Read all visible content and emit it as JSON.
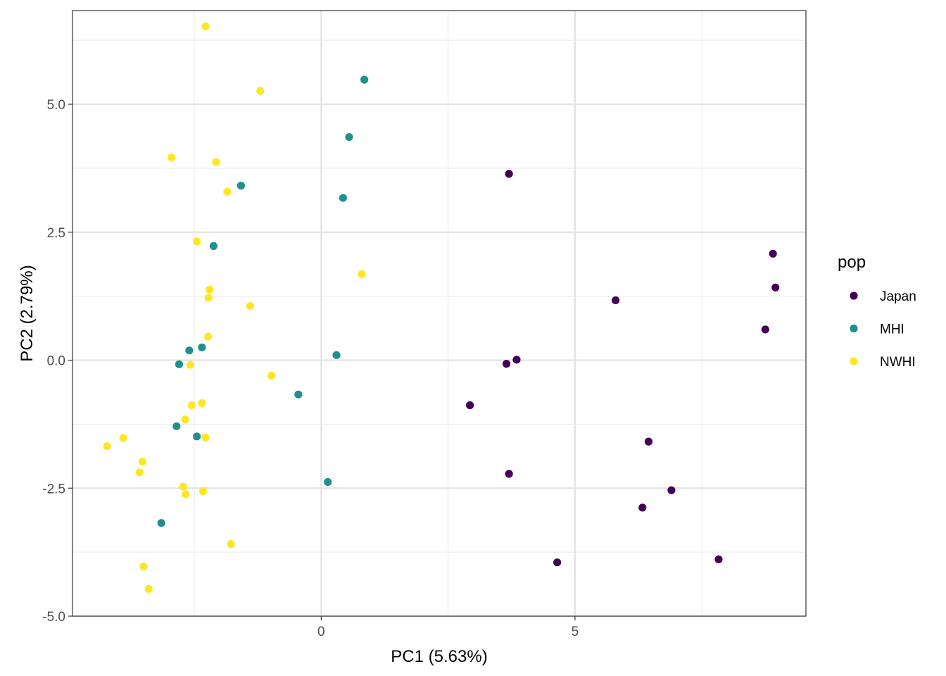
{
  "chart_data": {
    "type": "scatter",
    "title": "",
    "xlabel": "PC1 (5.63%)",
    "ylabel": "PC2 (2.79%)",
    "xlim": [
      -4.9,
      9.55
    ],
    "ylim": [
      -5.0,
      6.83
    ],
    "x_ticks": [
      {
        "value": 0,
        "label": "0"
      },
      {
        "value": 5,
        "label": "5"
      }
    ],
    "x_minor_grid": [
      -2.5,
      2.5,
      7.5
    ],
    "y_ticks": [
      {
        "value": -5.0,
        "label": "-5.0"
      },
      {
        "value": -2.5,
        "label": "-2.5"
      },
      {
        "value": 0.0,
        "label": "0.0"
      },
      {
        "value": 2.5,
        "label": "2.5"
      },
      {
        "value": 5.0,
        "label": "5.0"
      }
    ],
    "y_minor_grid": [
      -3.75,
      -1.25,
      1.25,
      3.75,
      6.25
    ],
    "grid": true,
    "legend": {
      "title": "pop",
      "position": "right"
    },
    "series": [
      {
        "name": "Japan",
        "color": "#440154",
        "points": [
          {
            "x": 3.7,
            "y": 3.64
          },
          {
            "x": 8.9,
            "y": 2.08
          },
          {
            "x": 8.95,
            "y": 1.42
          },
          {
            "x": 5.8,
            "y": 1.17
          },
          {
            "x": 8.75,
            "y": 0.6
          },
          {
            "x": 3.85,
            "y": 0.01
          },
          {
            "x": 3.65,
            "y": -0.07
          },
          {
            "x": 2.93,
            "y": -0.88
          },
          {
            "x": 6.45,
            "y": -1.59
          },
          {
            "x": 3.7,
            "y": -2.22
          },
          {
            "x": 6.9,
            "y": -2.54
          },
          {
            "x": 6.33,
            "y": -2.88
          },
          {
            "x": 4.65,
            "y": -3.95
          },
          {
            "x": 7.83,
            "y": -3.89
          }
        ]
      },
      {
        "name": "MHI",
        "color": "#21908C",
        "points": [
          {
            "x": 0.85,
            "y": 5.48
          },
          {
            "x": 0.55,
            "y": 4.36
          },
          {
            "x": -1.58,
            "y": 3.41
          },
          {
            "x": 0.43,
            "y": 3.17
          },
          {
            "x": -2.12,
            "y": 2.23
          },
          {
            "x": -2.35,
            "y": 0.25
          },
          {
            "x": -2.6,
            "y": 0.19
          },
          {
            "x": 0.3,
            "y": 0.1
          },
          {
            "x": -2.8,
            "y": -0.08
          },
          {
            "x": -0.45,
            "y": -0.67
          },
          {
            "x": -2.85,
            "y": -1.29
          },
          {
            "x": -2.45,
            "y": -1.49
          },
          {
            "x": 0.13,
            "y": -2.38
          },
          {
            "x": -3.15,
            "y": -3.18
          }
        ]
      },
      {
        "name": "NWHI",
        "color": "#FDE725",
        "points": [
          {
            "x": -2.28,
            "y": 6.52
          },
          {
            "x": -1.2,
            "y": 5.26
          },
          {
            "x": -2.95,
            "y": 3.96
          },
          {
            "x": -2.07,
            "y": 3.87
          },
          {
            "x": -1.85,
            "y": 3.29
          },
          {
            "x": -2.45,
            "y": 2.32
          },
          {
            "x": -2.2,
            "y": 1.38
          },
          {
            "x": -2.22,
            "y": 1.22
          },
          {
            "x": 0.8,
            "y": 1.68
          },
          {
            "x": -1.4,
            "y": 1.06
          },
          {
            "x": -2.23,
            "y": 0.46
          },
          {
            "x": -2.58,
            "y": -0.09
          },
          {
            "x": -0.98,
            "y": -0.3
          },
          {
            "x": -2.55,
            "y": -0.88
          },
          {
            "x": -2.35,
            "y": -0.84
          },
          {
            "x": -2.68,
            "y": -1.16
          },
          {
            "x": -2.28,
            "y": -1.51
          },
          {
            "x": -3.9,
            "y": -1.52
          },
          {
            "x": -4.22,
            "y": -1.68
          },
          {
            "x": -3.52,
            "y": -1.98
          },
          {
            "x": -3.58,
            "y": -2.19
          },
          {
            "x": -2.72,
            "y": -2.47
          },
          {
            "x": -2.33,
            "y": -2.56
          },
          {
            "x": -2.67,
            "y": -2.62
          },
          {
            "x": -1.78,
            "y": -3.59
          },
          {
            "x": -3.5,
            "y": -4.03
          },
          {
            "x": -3.4,
            "y": -4.47
          }
        ]
      }
    ]
  }
}
